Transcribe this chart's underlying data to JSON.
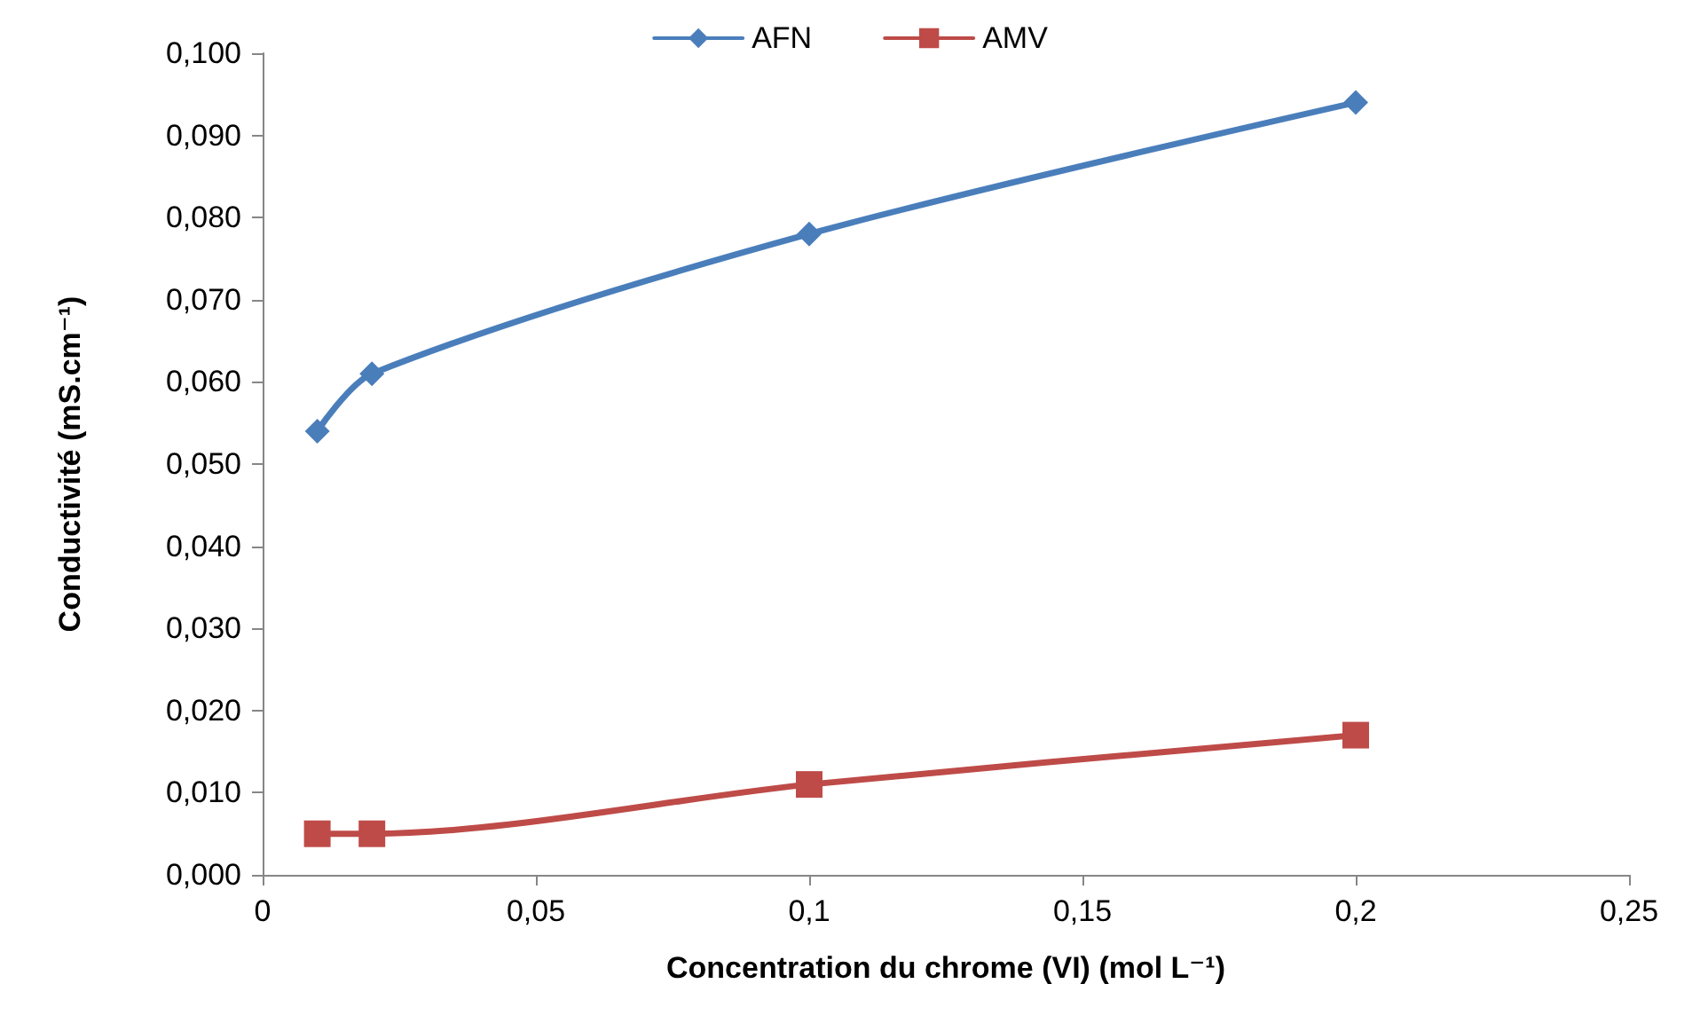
{
  "chart_data": {
    "type": "line",
    "xlabel": "Concentration du chrome (VI) (mol L⁻¹)",
    "ylabel": "Conductivité (mS.cm⁻¹)",
    "xlim": [
      0,
      0.25
    ],
    "xticks": [
      {
        "value": 0,
        "label": "0"
      },
      {
        "value": 0.05,
        "label": "0,05"
      },
      {
        "value": 0.1,
        "label": "0,1"
      },
      {
        "value": 0.15,
        "label": "0,15"
      },
      {
        "value": 0.2,
        "label": "0,2"
      },
      {
        "value": 0.25,
        "label": "0,25"
      }
    ],
    "ylim": [
      0,
      0.1
    ],
    "yticks": [
      {
        "value": 0,
        "label": "0,000"
      },
      {
        "value": 0.01,
        "label": "0,010"
      },
      {
        "value": 0.02,
        "label": "0,020"
      },
      {
        "value": 0.03,
        "label": "0,030"
      },
      {
        "value": 0.04,
        "label": "0,040"
      },
      {
        "value": 0.05,
        "label": "0,050"
      },
      {
        "value": 0.06,
        "label": "0,060"
      },
      {
        "value": 0.07,
        "label": "0,070"
      },
      {
        "value": 0.08,
        "label": "0,080"
      },
      {
        "value": 0.09,
        "label": "0,090"
      },
      {
        "value": 0.1,
        "label": "0,100"
      }
    ],
    "x": [
      0.01,
      0.02,
      0.1,
      0.2
    ],
    "series": [
      {
        "name": "AFN",
        "color": "#4a7ebb",
        "marker": "diamond",
        "values": [
          0.054,
          0.061,
          0.078,
          0.094
        ]
      },
      {
        "name": "AMV",
        "color": "#be4b48",
        "marker": "square",
        "values": [
          0.005,
          0.005,
          0.011,
          0.017
        ]
      }
    ],
    "grid": false,
    "legend": "top",
    "line_style": "solid"
  }
}
